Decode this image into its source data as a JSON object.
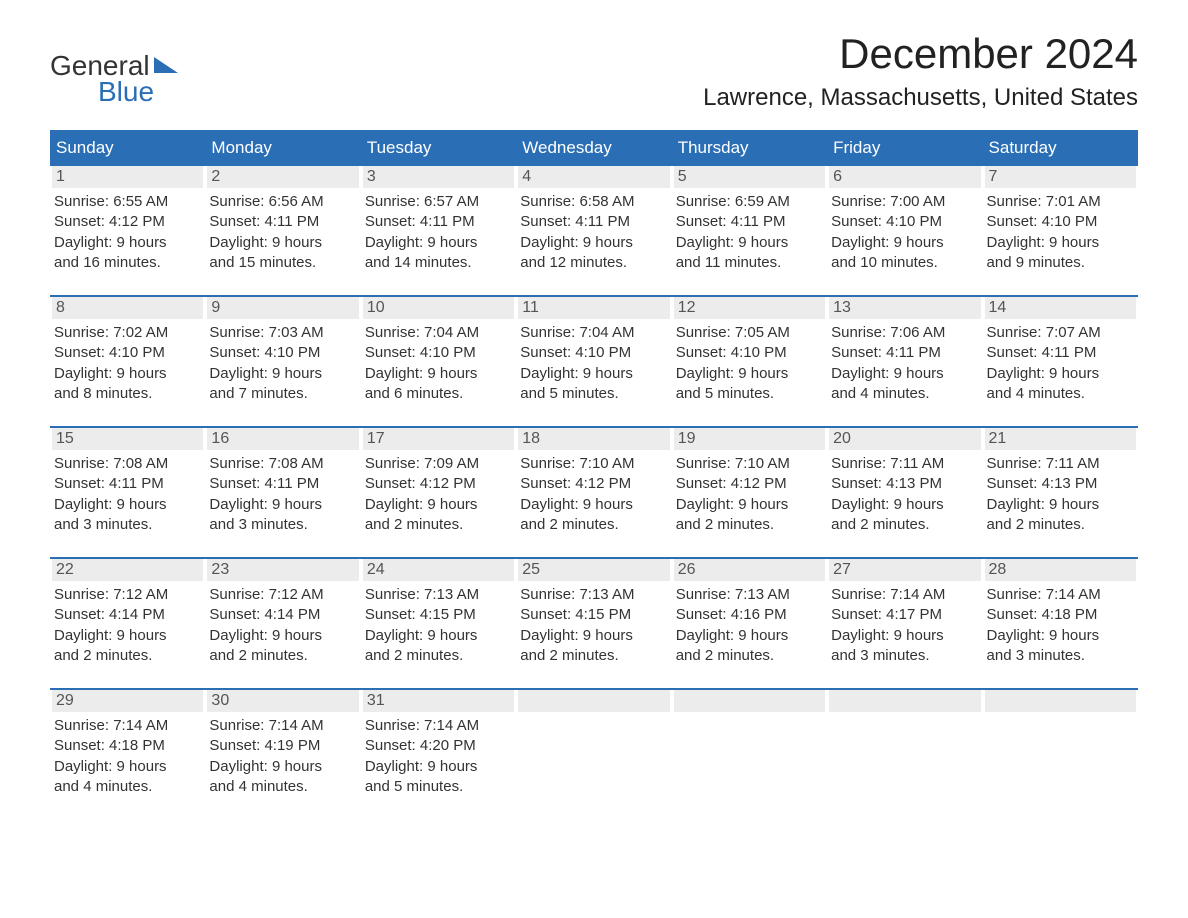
{
  "brand": {
    "word1": "General",
    "word2": "Blue",
    "accent_color": "#2a6eb6"
  },
  "title": "December 2024",
  "location": "Lawrence, Massachusetts, United States",
  "header_bg": "#2a6eb6",
  "daynum_bg": "#ececec",
  "text_color": "#333333",
  "weekdays": [
    "Sunday",
    "Monday",
    "Tuesday",
    "Wednesday",
    "Thursday",
    "Friday",
    "Saturday"
  ],
  "weeks": [
    [
      {
        "n": "1",
        "sunrise": "Sunrise: 6:55 AM",
        "sunset": "Sunset: 4:12 PM",
        "d1": "Daylight: 9 hours",
        "d2": "and 16 minutes."
      },
      {
        "n": "2",
        "sunrise": "Sunrise: 6:56 AM",
        "sunset": "Sunset: 4:11 PM",
        "d1": "Daylight: 9 hours",
        "d2": "and 15 minutes."
      },
      {
        "n": "3",
        "sunrise": "Sunrise: 6:57 AM",
        "sunset": "Sunset: 4:11 PM",
        "d1": "Daylight: 9 hours",
        "d2": "and 14 minutes."
      },
      {
        "n": "4",
        "sunrise": "Sunrise: 6:58 AM",
        "sunset": "Sunset: 4:11 PM",
        "d1": "Daylight: 9 hours",
        "d2": "and 12 minutes."
      },
      {
        "n": "5",
        "sunrise": "Sunrise: 6:59 AM",
        "sunset": "Sunset: 4:11 PM",
        "d1": "Daylight: 9 hours",
        "d2": "and 11 minutes."
      },
      {
        "n": "6",
        "sunrise": "Sunrise: 7:00 AM",
        "sunset": "Sunset: 4:10 PM",
        "d1": "Daylight: 9 hours",
        "d2": "and 10 minutes."
      },
      {
        "n": "7",
        "sunrise": "Sunrise: 7:01 AM",
        "sunset": "Sunset: 4:10 PM",
        "d1": "Daylight: 9 hours",
        "d2": "and 9 minutes."
      }
    ],
    [
      {
        "n": "8",
        "sunrise": "Sunrise: 7:02 AM",
        "sunset": "Sunset: 4:10 PM",
        "d1": "Daylight: 9 hours",
        "d2": "and 8 minutes."
      },
      {
        "n": "9",
        "sunrise": "Sunrise: 7:03 AM",
        "sunset": "Sunset: 4:10 PM",
        "d1": "Daylight: 9 hours",
        "d2": "and 7 minutes."
      },
      {
        "n": "10",
        "sunrise": "Sunrise: 7:04 AM",
        "sunset": "Sunset: 4:10 PM",
        "d1": "Daylight: 9 hours",
        "d2": "and 6 minutes."
      },
      {
        "n": "11",
        "sunrise": "Sunrise: 7:04 AM",
        "sunset": "Sunset: 4:10 PM",
        "d1": "Daylight: 9 hours",
        "d2": "and 5 minutes."
      },
      {
        "n": "12",
        "sunrise": "Sunrise: 7:05 AM",
        "sunset": "Sunset: 4:10 PM",
        "d1": "Daylight: 9 hours",
        "d2": "and 5 minutes."
      },
      {
        "n": "13",
        "sunrise": "Sunrise: 7:06 AM",
        "sunset": "Sunset: 4:11 PM",
        "d1": "Daylight: 9 hours",
        "d2": "and 4 minutes."
      },
      {
        "n": "14",
        "sunrise": "Sunrise: 7:07 AM",
        "sunset": "Sunset: 4:11 PM",
        "d1": "Daylight: 9 hours",
        "d2": "and 4 minutes."
      }
    ],
    [
      {
        "n": "15",
        "sunrise": "Sunrise: 7:08 AM",
        "sunset": "Sunset: 4:11 PM",
        "d1": "Daylight: 9 hours",
        "d2": "and 3 minutes."
      },
      {
        "n": "16",
        "sunrise": "Sunrise: 7:08 AM",
        "sunset": "Sunset: 4:11 PM",
        "d1": "Daylight: 9 hours",
        "d2": "and 3 minutes."
      },
      {
        "n": "17",
        "sunrise": "Sunrise: 7:09 AM",
        "sunset": "Sunset: 4:12 PM",
        "d1": "Daylight: 9 hours",
        "d2": "and 2 minutes."
      },
      {
        "n": "18",
        "sunrise": "Sunrise: 7:10 AM",
        "sunset": "Sunset: 4:12 PM",
        "d1": "Daylight: 9 hours",
        "d2": "and 2 minutes."
      },
      {
        "n": "19",
        "sunrise": "Sunrise: 7:10 AM",
        "sunset": "Sunset: 4:12 PM",
        "d1": "Daylight: 9 hours",
        "d2": "and 2 minutes."
      },
      {
        "n": "20",
        "sunrise": "Sunrise: 7:11 AM",
        "sunset": "Sunset: 4:13 PM",
        "d1": "Daylight: 9 hours",
        "d2": "and 2 minutes."
      },
      {
        "n": "21",
        "sunrise": "Sunrise: 7:11 AM",
        "sunset": "Sunset: 4:13 PM",
        "d1": "Daylight: 9 hours",
        "d2": "and 2 minutes."
      }
    ],
    [
      {
        "n": "22",
        "sunrise": "Sunrise: 7:12 AM",
        "sunset": "Sunset: 4:14 PM",
        "d1": "Daylight: 9 hours",
        "d2": "and 2 minutes."
      },
      {
        "n": "23",
        "sunrise": "Sunrise: 7:12 AM",
        "sunset": "Sunset: 4:14 PM",
        "d1": "Daylight: 9 hours",
        "d2": "and 2 minutes."
      },
      {
        "n": "24",
        "sunrise": "Sunrise: 7:13 AM",
        "sunset": "Sunset: 4:15 PM",
        "d1": "Daylight: 9 hours",
        "d2": "and 2 minutes."
      },
      {
        "n": "25",
        "sunrise": "Sunrise: 7:13 AM",
        "sunset": "Sunset: 4:15 PM",
        "d1": "Daylight: 9 hours",
        "d2": "and 2 minutes."
      },
      {
        "n": "26",
        "sunrise": "Sunrise: 7:13 AM",
        "sunset": "Sunset: 4:16 PM",
        "d1": "Daylight: 9 hours",
        "d2": "and 2 minutes."
      },
      {
        "n": "27",
        "sunrise": "Sunrise: 7:14 AM",
        "sunset": "Sunset: 4:17 PM",
        "d1": "Daylight: 9 hours",
        "d2": "and 3 minutes."
      },
      {
        "n": "28",
        "sunrise": "Sunrise: 7:14 AM",
        "sunset": "Sunset: 4:18 PM",
        "d1": "Daylight: 9 hours",
        "d2": "and 3 minutes."
      }
    ],
    [
      {
        "n": "29",
        "sunrise": "Sunrise: 7:14 AM",
        "sunset": "Sunset: 4:18 PM",
        "d1": "Daylight: 9 hours",
        "d2": "and 4 minutes."
      },
      {
        "n": "30",
        "sunrise": "Sunrise: 7:14 AM",
        "sunset": "Sunset: 4:19 PM",
        "d1": "Daylight: 9 hours",
        "d2": "and 4 minutes."
      },
      {
        "n": "31",
        "sunrise": "Sunrise: 7:14 AM",
        "sunset": "Sunset: 4:20 PM",
        "d1": "Daylight: 9 hours",
        "d2": "and 5 minutes."
      },
      null,
      null,
      null,
      null
    ]
  ]
}
